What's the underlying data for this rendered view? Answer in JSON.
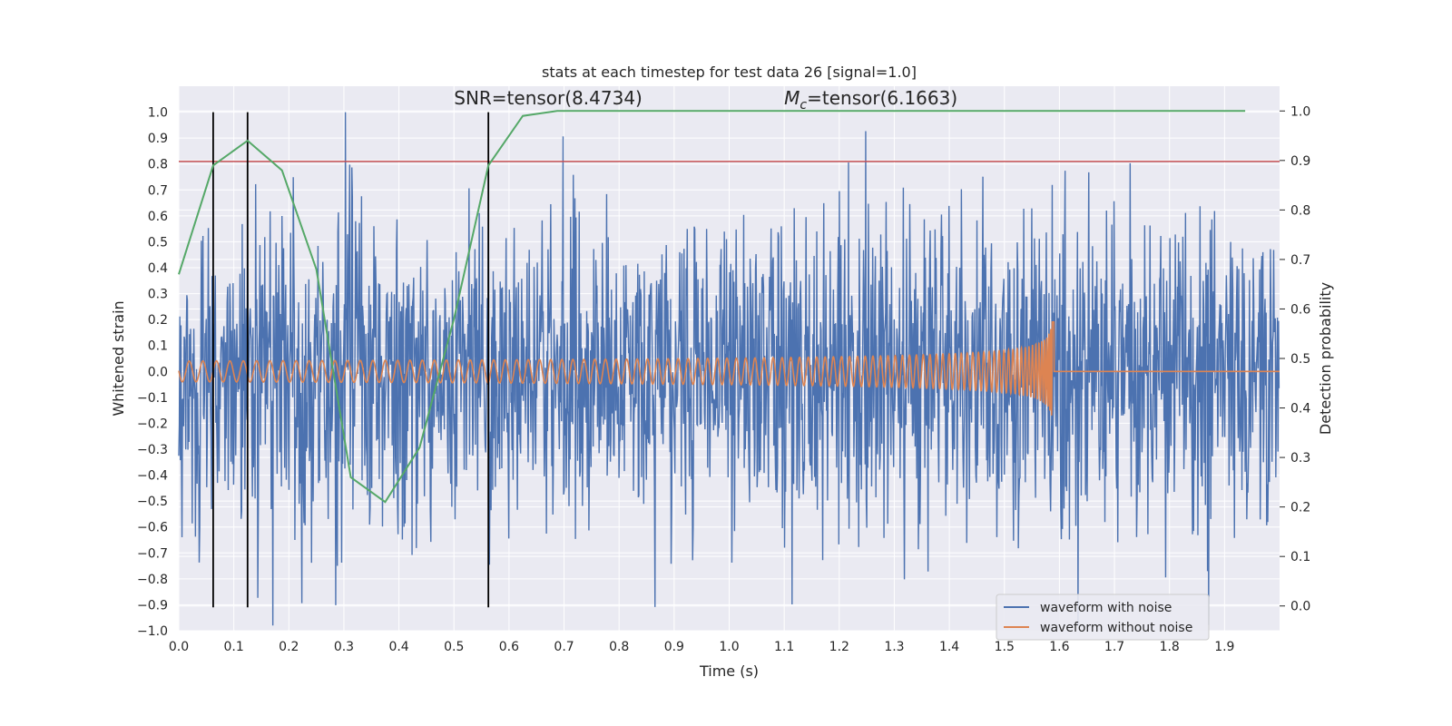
{
  "chart_data": {
    "type": "line",
    "title": "stats at each timestep for test data 26 [signal=1.0]",
    "xlabel": "Time (s)",
    "ylabel": "Whitened strain",
    "y2label": "Detection probability",
    "xlim": [
      0.0,
      2.0
    ],
    "ylim": [
      -1.0,
      1.1
    ],
    "y2lim": [
      -0.05,
      1.05
    ],
    "xticks": [
      "0.0",
      "0.1",
      "0.2",
      "0.3",
      "0.4",
      "0.5",
      "0.6",
      "0.7",
      "0.8",
      "0.9",
      "1.0",
      "1.1",
      "1.2",
      "1.3",
      "1.4",
      "1.5",
      "1.6",
      "1.7",
      "1.8",
      "1.9"
    ],
    "yticks": [
      "-1.0",
      "-0.9",
      "-0.8",
      "-0.7",
      "-0.6",
      "-0.5",
      "-0.4",
      "-0.3",
      "-0.2",
      "-0.1",
      "0.0",
      "0.1",
      "0.2",
      "0.3",
      "0.4",
      "0.5",
      "0.6",
      "0.7",
      "0.8",
      "0.9",
      "1.0"
    ],
    "y2ticks": [
      "0.0",
      "0.1",
      "0.2",
      "0.3",
      "0.4",
      "0.5",
      "0.6",
      "0.7",
      "0.8",
      "0.9",
      "1.0"
    ],
    "grid": true,
    "legend_position": "lower-right",
    "annotations": [
      {
        "text": "SNR=tensor(8.4734)",
        "x": 0.5,
        "y": 1.03
      },
      {
        "text_pre": "M",
        "text_sub": "c",
        "text_post": "=tensor(6.1663)",
        "x": 1.1,
        "y": 1.03
      }
    ],
    "series": [
      {
        "name": "waveform with noise",
        "color": "#4c72b0",
        "axis": "left",
        "description_only": true,
        "noise_std": 0.3,
        "sample_rate": 2048
      },
      {
        "name": "waveform without noise",
        "color": "#dd8452",
        "axis": "left",
        "chirp_f0": 40,
        "chirp_tc": 1.59,
        "base_amp": 0.04,
        "peak_amp": 0.33
      },
      {
        "color": "#55a868",
        "axis": "right",
        "x": [
          0.0,
          0.0625,
          0.125,
          0.1875,
          0.25,
          0.3125,
          0.375,
          0.4375,
          0.5,
          0.5625,
          0.625,
          0.6875,
          0.75,
          1.0,
          1.25,
          1.5,
          1.75,
          1.9375
        ],
        "y": [
          0.67,
          0.89,
          0.94,
          0.88,
          0.68,
          0.26,
          0.21,
          0.32,
          0.58,
          0.89,
          0.99,
          1.0,
          1.0,
          1.0,
          1.0,
          1.0,
          1.0,
          1.0
        ]
      }
    ],
    "hlines": [
      {
        "y": 0.81,
        "color": "#c44e52",
        "axis": "left"
      }
    ],
    "vlines": [
      {
        "x": 0.0625,
        "ymin": -0.91,
        "ymax": 1.0,
        "color": "#000000"
      },
      {
        "x": 0.125,
        "ymin": -0.91,
        "ymax": 1.0,
        "color": "#000000"
      },
      {
        "x": 0.5625,
        "ymin": -0.91,
        "ymax": 1.0,
        "color": "#000000"
      }
    ]
  },
  "colors": {
    "axes_bg": "#eaeaf2",
    "grid": "#ffffff",
    "noise": "#4c72b0",
    "clean": "#dd8452",
    "prob": "#55a868",
    "threshold": "#c44e52"
  }
}
